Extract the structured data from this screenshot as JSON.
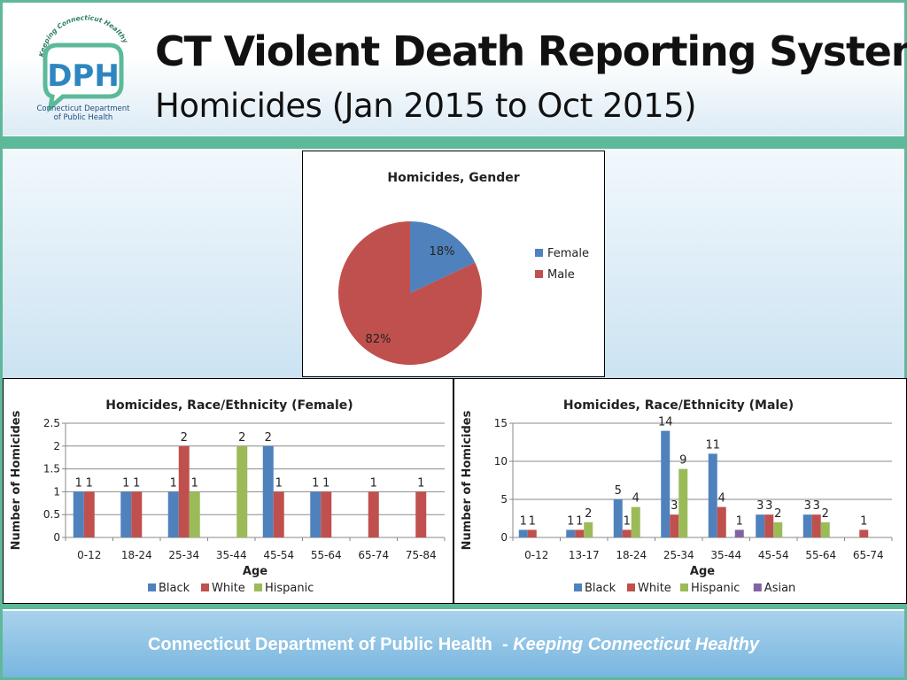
{
  "header": {
    "title": "CT Violent Death Reporting System",
    "subtitle": "Homicides (Jan 2015 to Oct 2015)",
    "logo": {
      "arc_text": "Keeping Connecticut Healthy",
      "letters": "DPH",
      "caption_line1": "Connecticut Department",
      "caption_line2": "of Public Health"
    }
  },
  "footer": {
    "org": "Connecticut Department of Public Health",
    "separator": "-",
    "tagline": "Keeping Connecticut Healthy"
  },
  "colors": {
    "accent_green": "#5cb99a",
    "black": "#4f81bd",
    "white": "#c0504d",
    "hispanic": "#9bbb59",
    "asian": "#8064a2"
  },
  "chart_data": [
    {
      "type": "pie",
      "title": "Homicides, Gender",
      "labels": [
        "Female",
        "Male"
      ],
      "values": [
        18,
        82
      ],
      "value_labels": [
        "18%",
        "82%"
      ],
      "colors": [
        "#4f81bd",
        "#c0504d"
      ],
      "legend": "right"
    },
    {
      "type": "bar",
      "title": "Homicides, Race/Ethnicity (Female)",
      "xlabel": "Age",
      "ylabel": "Number of Homicides",
      "categories": [
        "0-12",
        "18-24",
        "25-34",
        "35-44",
        "45-54",
        "55-64",
        "65-74",
        "75-84"
      ],
      "ylim": [
        0,
        2.5
      ],
      "yticks": [
        "0",
        "0.5",
        "1",
        "1.5",
        "2",
        "2.5"
      ],
      "grid": true,
      "legend": "bottom",
      "series": [
        {
          "name": "Black",
          "color": "#4f81bd",
          "values": [
            1,
            1,
            1,
            null,
            2,
            1,
            null,
            null
          ]
        },
        {
          "name": "White",
          "color": "#c0504d",
          "values": [
            1,
            1,
            2,
            null,
            1,
            1,
            1,
            1
          ]
        },
        {
          "name": "Hispanic",
          "color": "#9bbb59",
          "values": [
            null,
            null,
            1,
            2,
            null,
            null,
            null,
            null
          ]
        }
      ]
    },
    {
      "type": "bar",
      "title": "Homicides, Race/Ethnicity (Male)",
      "xlabel": "Age",
      "ylabel": "Number of Homicides",
      "categories": [
        "0-12",
        "13-17",
        "18-24",
        "25-34",
        "35-44",
        "45-54",
        "55-64",
        "65-74"
      ],
      "ylim": [
        0,
        15
      ],
      "yticks": [
        "0",
        "5",
        "10",
        "15"
      ],
      "grid": true,
      "legend": "bottom",
      "series": [
        {
          "name": "Black",
          "color": "#4f81bd",
          "values": [
            1,
            1,
            5,
            14,
            11,
            3,
            3,
            null
          ]
        },
        {
          "name": "White",
          "color": "#c0504d",
          "values": [
            1,
            1,
            1,
            3,
            4,
            3,
            3,
            1
          ]
        },
        {
          "name": "Hispanic",
          "color": "#9bbb59",
          "values": [
            null,
            2,
            4,
            9,
            null,
            2,
            2,
            null
          ]
        },
        {
          "name": "Asian",
          "color": "#8064a2",
          "values": [
            null,
            null,
            null,
            null,
            1,
            null,
            null,
            null
          ]
        }
      ]
    }
  ]
}
